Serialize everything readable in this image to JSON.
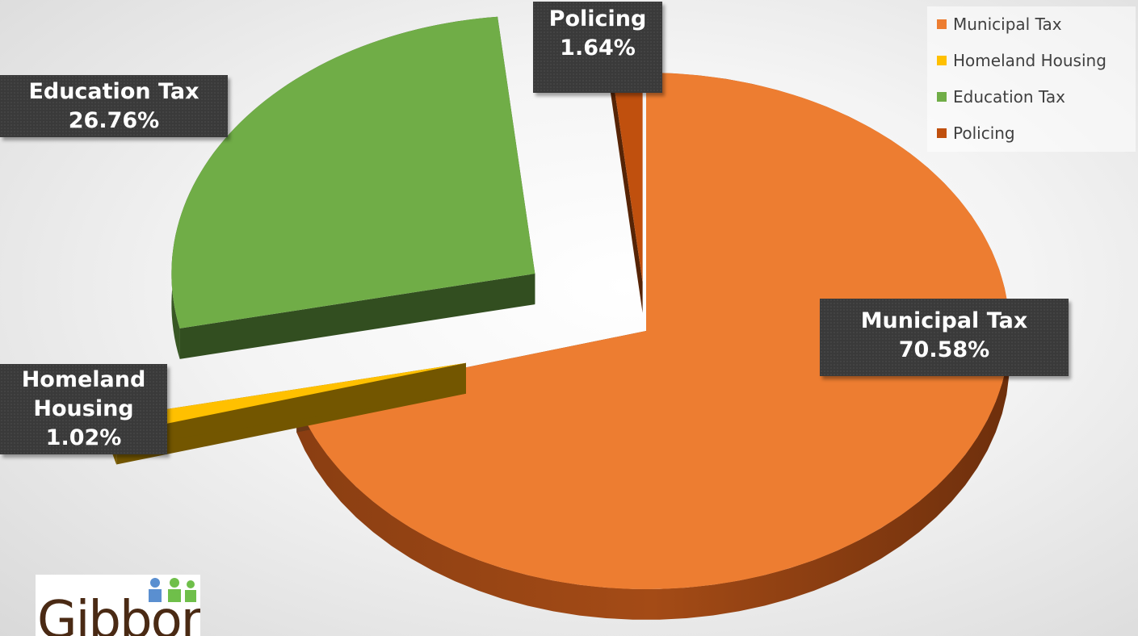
{
  "chart_data": {
    "type": "pie",
    "title": "",
    "values": [
      70.58,
      1.02,
      26.76,
      1.64
    ],
    "categories": [
      "Municipal Tax",
      "Homeland Housing",
      "Education Tax",
      "Policing"
    ],
    "colors": [
      "#ed7d31",
      "#ffc000",
      "#70ad47",
      "#c0500e"
    ],
    "legend_position": "top-right"
  },
  "labels": {
    "municipal": {
      "name": "Municipal Tax",
      "pct": "70.58%"
    },
    "homeland": {
      "name1": "Homeland",
      "name2": "Housing",
      "pct": "1.02%"
    },
    "education": {
      "name": "Education Tax",
      "pct": "26.76%"
    },
    "policing": {
      "name": "Policing",
      "pct": "1.64%"
    }
  },
  "legend": [
    {
      "label": "Municipal Tax",
      "color": "#ed7d31"
    },
    {
      "label": "Homeland Housing",
      "color": "#ffc000"
    },
    {
      "label": "Education Tax",
      "color": "#70ad47"
    },
    {
      "label": "Policing",
      "color": "#c0500e"
    }
  ],
  "logo": {
    "text": "Gibbons"
  }
}
